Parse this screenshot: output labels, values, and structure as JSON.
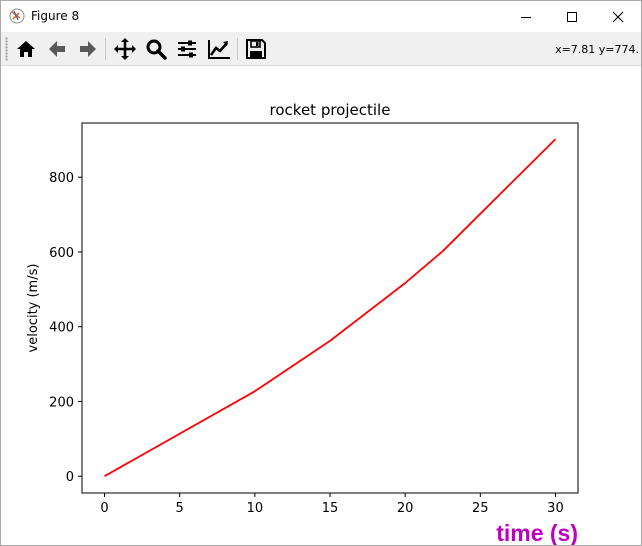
{
  "window": {
    "title": "Figure 8"
  },
  "toolbar": {
    "buttons": [
      {
        "name": "home-icon",
        "label": "Home"
      },
      {
        "name": "back-arrow-icon",
        "label": "Back"
      },
      {
        "name": "forward-arrow-icon",
        "label": "Forward"
      },
      {
        "name": "pan-icon",
        "label": "Pan"
      },
      {
        "name": "zoom-icon",
        "label": "Zoom"
      },
      {
        "name": "subplots-icon",
        "label": "Configure subplots"
      },
      {
        "name": "edit-axis-icon",
        "label": "Edit axis"
      },
      {
        "name": "save-icon",
        "label": "Save"
      }
    ],
    "coords": "x=7.81 y=774."
  },
  "colors": {
    "line": "#ff0000",
    "xlabel": "#bf00bf"
  },
  "chart_data": {
    "type": "line",
    "title": "rocket projectile",
    "xlabel": "time (s)",
    "ylabel": "velocity (m/s)",
    "xlim": [
      -1.5,
      31.5
    ],
    "ylim": [
      -45,
      945
    ],
    "xticks": [
      0,
      5,
      10,
      15,
      20,
      25,
      30
    ],
    "yticks": [
      0,
      200,
      400,
      600,
      800
    ],
    "grid": false,
    "series": [
      {
        "x": [
          0,
          10,
          15,
          20,
          22.5,
          25,
          30
        ],
        "y": [
          0,
          227,
          362,
          517,
          602,
          702,
          902
        ]
      }
    ]
  }
}
